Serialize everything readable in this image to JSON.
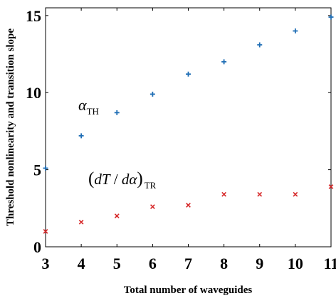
{
  "chart_data": {
    "type": "scatter",
    "xlabel": "Total number of waveguides",
    "ylabel": "Threshold nonlinearity and transition slope",
    "xlim": [
      3,
      11
    ],
    "ylim": [
      0,
      15.5
    ],
    "x_ticks": [
      "3",
      "4",
      "5",
      "6",
      "7",
      "8",
      "9",
      "10",
      "11"
    ],
    "y_ticks": [
      "0",
      "5",
      "10",
      "15"
    ],
    "grid": false,
    "x": [
      3,
      4,
      5,
      6,
      7,
      8,
      9,
      10,
      11
    ],
    "series": [
      {
        "color": "#1f6eb5",
        "marker": "plus",
        "values": [
          5.1,
          7.2,
          8.7,
          9.9,
          11.2,
          12.0,
          13.1,
          14.0,
          14.9
        ]
      },
      {
        "color": "#d62728",
        "marker": "x",
        "values": [
          1.0,
          1.6,
          2.0,
          2.6,
          2.7,
          3.4,
          3.4,
          3.4,
          3.9
        ]
      }
    ],
    "annotations": {
      "alpha": {
        "symbol": "α",
        "subscript": "TH"
      },
      "slope": {
        "open": "(",
        "numerator": "dT",
        "slash": " / ",
        "denominator": "dα",
        "close": ")",
        "subscript": "TR"
      }
    }
  }
}
